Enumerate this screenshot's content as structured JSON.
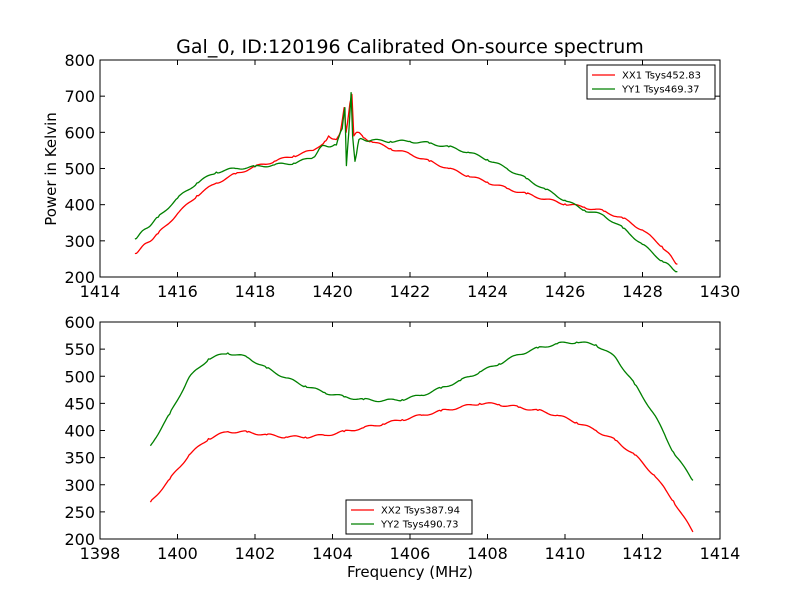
{
  "chart_data": [
    {
      "type": "line",
      "title": "Gal_0, ID:120196 Calibrated On-source spectrum",
      "xlabel": "",
      "ylabel": "Power in Kelvin",
      "xlim": [
        1414,
        1430
      ],
      "ylim": [
        200,
        800
      ],
      "xticks": [
        1414,
        1416,
        1418,
        1420,
        1422,
        1424,
        1426,
        1428,
        1430
      ],
      "yticks": [
        200,
        300,
        400,
        500,
        600,
        700,
        800
      ],
      "legend_position": "top-right",
      "series": [
        {
          "name": "XX1 Tsys452.83",
          "color": "#ff0000",
          "points": [
            [
              1414.9,
              265
            ],
            [
              1415.5,
              320
            ],
            [
              1416,
              375
            ],
            [
              1416.5,
              425
            ],
            [
              1417,
              460
            ],
            [
              1417.5,
              485
            ],
            [
              1418,
              505
            ],
            [
              1418.5,
              520
            ],
            [
              1419,
              535
            ],
            [
              1419.5,
              550
            ],
            [
              1419.8,
              575
            ],
            [
              1419.9,
              590
            ],
            [
              1420.1,
              580
            ],
            [
              1420.2,
              600
            ],
            [
              1420.3,
              668
            ],
            [
              1420.35,
              600
            ],
            [
              1420.45,
              680
            ],
            [
              1420.5,
              705
            ],
            [
              1420.55,
              590
            ],
            [
              1420.65,
              600
            ],
            [
              1420.8,
              585
            ],
            [
              1421,
              575
            ],
            [
              1421.5,
              555
            ],
            [
              1422,
              540
            ],
            [
              1422.5,
              520
            ],
            [
              1423,
              500
            ],
            [
              1423.5,
              480
            ],
            [
              1424,
              462
            ],
            [
              1424.5,
              445
            ],
            [
              1425,
              430
            ],
            [
              1425.5,
              415
            ],
            [
              1426,
              402
            ],
            [
              1426.5,
              393
            ],
            [
              1427,
              382
            ],
            [
              1427.5,
              362
            ],
            [
              1428,
              330
            ],
            [
              1428.5,
              285
            ],
            [
              1428.9,
              235
            ]
          ]
        },
        {
          "name": "YY1 Tsys469.37",
          "color": "#008000",
          "points": [
            [
              1414.9,
              305
            ],
            [
              1415.5,
              365
            ],
            [
              1416,
              418
            ],
            [
              1416.5,
              460
            ],
            [
              1417,
              490
            ],
            [
              1417.5,
              500
            ],
            [
              1418,
              505
            ],
            [
              1418.5,
              510
            ],
            [
              1419,
              515
            ],
            [
              1419.5,
              530
            ],
            [
              1419.7,
              560
            ],
            [
              1420.1,
              565
            ],
            [
              1420.25,
              610
            ],
            [
              1420.32,
              668
            ],
            [
              1420.36,
              508
            ],
            [
              1420.42,
              600
            ],
            [
              1420.48,
              710
            ],
            [
              1420.52,
              590
            ],
            [
              1420.58,
              520
            ],
            [
              1420.62,
              540
            ],
            [
              1420.68,
              580
            ],
            [
              1421,
              578
            ],
            [
              1421.5,
              575
            ],
            [
              1422,
              575
            ],
            [
              1422.5,
              570
            ],
            [
              1423,
              560
            ],
            [
              1423.5,
              545
            ],
            [
              1424,
              525
            ],
            [
              1424.5,
              500
            ],
            [
              1425,
              472
            ],
            [
              1425.5,
              442
            ],
            [
              1426,
              412
            ],
            [
              1426.5,
              385
            ],
            [
              1427,
              370
            ],
            [
              1427.5,
              335
            ],
            [
              1428,
              290
            ],
            [
              1428.5,
              245
            ],
            [
              1428.9,
              215
            ]
          ]
        }
      ]
    },
    {
      "type": "line",
      "title": "",
      "xlabel": "Frequency (MHz)",
      "ylabel": "",
      "xlim": [
        1398,
        1414
      ],
      "ylim": [
        200,
        600
      ],
      "xticks": [
        1398,
        1400,
        1402,
        1404,
        1406,
        1408,
        1410,
        1412,
        1414
      ],
      "yticks": [
        200,
        250,
        300,
        350,
        400,
        450,
        500,
        550,
        600
      ],
      "legend_position": "bottom-center",
      "series": [
        {
          "name": "XX2 Tsys387.94",
          "color": "#ff0000",
          "points": [
            [
              1399.3,
              268
            ],
            [
              1399.8,
              310
            ],
            [
              1400.3,
              355
            ],
            [
              1400.8,
              385
            ],
            [
              1401.3,
              398
            ],
            [
              1401.8,
              397
            ],
            [
              1402.3,
              392
            ],
            [
              1402.8,
              388
            ],
            [
              1403.3,
              388
            ],
            [
              1403.8,
              391
            ],
            [
              1404.3,
              398
            ],
            [
              1404.8,
              405
            ],
            [
              1405.3,
              412
            ],
            [
              1405.8,
              420
            ],
            [
              1406.3,
              428
            ],
            [
              1406.8,
              436
            ],
            [
              1407.3,
              443
            ],
            [
              1407.8,
              450
            ],
            [
              1408.3,
              448
            ],
            [
              1408.8,
              443
            ],
            [
              1409.3,
              437
            ],
            [
              1409.8,
              428
            ],
            [
              1410.3,
              415
            ],
            [
              1410.8,
              400
            ],
            [
              1411.3,
              382
            ],
            [
              1411.8,
              355
            ],
            [
              1412.3,
              318
            ],
            [
              1412.8,
              270
            ],
            [
              1413.3,
              213
            ]
          ]
        },
        {
          "name": "YY2 Tsys490.73",
          "color": "#008000",
          "points": [
            [
              1399.3,
              372
            ],
            [
              1399.8,
              430
            ],
            [
              1400.3,
              498
            ],
            [
              1400.8,
              532
            ],
            [
              1401.3,
              543
            ],
            [
              1401.8,
              535
            ],
            [
              1402.3,
              515
            ],
            [
              1402.8,
              497
            ],
            [
              1403.3,
              482
            ],
            [
              1403.8,
              470
            ],
            [
              1404.3,
              462
            ],
            [
              1404.8,
              457
            ],
            [
              1405.3,
              455
            ],
            [
              1405.8,
              457
            ],
            [
              1406.3,
              465
            ],
            [
              1406.8,
              478
            ],
            [
              1407.3,
              492
            ],
            [
              1407.8,
              508
            ],
            [
              1408.3,
              523
            ],
            [
              1408.8,
              540
            ],
            [
              1409.3,
              552
            ],
            [
              1409.8,
              560
            ],
            [
              1410.3,
              563
            ],
            [
              1410.8,
              558
            ],
            [
              1411.3,
              535
            ],
            [
              1411.8,
              485
            ],
            [
              1412.3,
              430
            ],
            [
              1412.8,
              360
            ],
            [
              1413.3,
              308
            ]
          ]
        }
      ]
    }
  ]
}
